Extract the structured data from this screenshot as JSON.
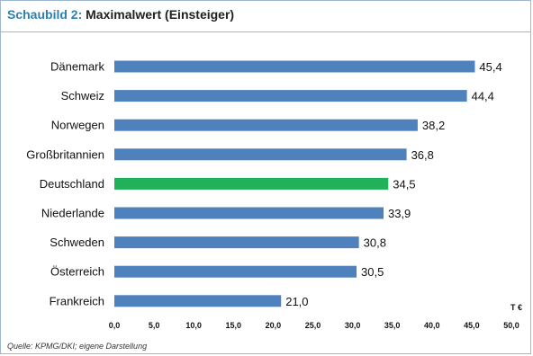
{
  "header": {
    "prefix": "Schaubild 2:",
    "title": "Maximalwert (Einsteiger)"
  },
  "source": "Quelle: KPMG/DKI; eigene Darstellung",
  "chart_data": {
    "type": "bar",
    "orientation": "horizontal",
    "title": "Maximalwert (Einsteiger)",
    "categories": [
      "Dänemark",
      "Schweiz",
      "Norwegen",
      "Großbritannien",
      "Deutschland",
      "Niederlande",
      "Schweden",
      "Österreich",
      "Frankreich"
    ],
    "values": [
      45.4,
      44.4,
      38.2,
      36.8,
      34.5,
      33.9,
      30.8,
      30.5,
      21.0
    ],
    "value_labels": [
      "45,4",
      "44,4",
      "38,2",
      "36,8",
      "34,5",
      "33,9",
      "30,8",
      "30,5",
      "21,0"
    ],
    "xticks": [
      "0,0",
      "5,0",
      "10,0",
      "15,0",
      "20,0",
      "25,0",
      "30,0",
      "35,0",
      "40,0",
      "45,0",
      "50,0"
    ],
    "xlim": [
      0,
      50
    ],
    "unit_label": "T €",
    "highlight_category": "Deutschland",
    "colors": {
      "bar": "#4f81bd",
      "highlight": "#22b15b"
    },
    "grid": false
  }
}
